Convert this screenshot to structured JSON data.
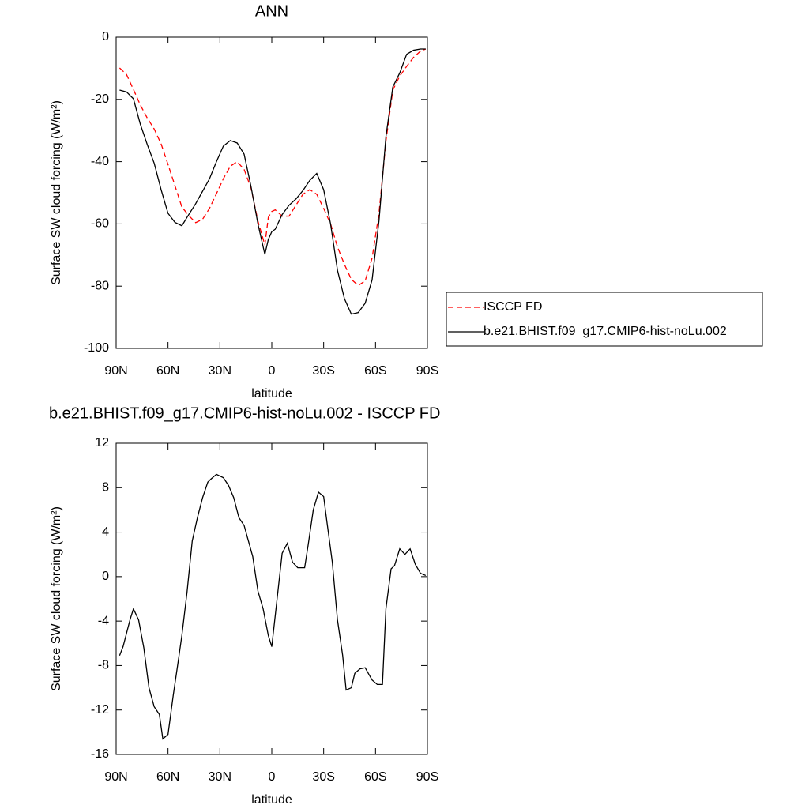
{
  "chart_data": [
    {
      "type": "line",
      "title": "ANN",
      "xlabel": "latitude",
      "ylabel": "Surface SW cloud forcing (W/m²)",
      "xlim": [
        90,
        -90
      ],
      "xticks": [
        {
          "value": 90,
          "label": "90N"
        },
        {
          "value": 60,
          "label": "60N"
        },
        {
          "value": 30,
          "label": "30N"
        },
        {
          "value": 0,
          "label": "0"
        },
        {
          "value": -30,
          "label": "30S"
        },
        {
          "value": -60,
          "label": "60S"
        },
        {
          "value": -90,
          "label": "90S"
        }
      ],
      "ylim": [
        -100,
        0
      ],
      "yticks": [
        -100,
        -80,
        -60,
        -40,
        -20,
        0
      ],
      "legend": "outside-right",
      "x": [
        88,
        84,
        80,
        76,
        72,
        68,
        64,
        60,
        56,
        52,
        48,
        44,
        40,
        36,
        32,
        28,
        24,
        20,
        16,
        12,
        8,
        4,
        2,
        0,
        -2,
        -6,
        -10,
        -14,
        -18,
        -22,
        -26,
        -30,
        -34,
        -38,
        -42,
        -46,
        -50,
        -54,
        -58,
        -62,
        -66,
        -70,
        -74,
        -78,
        -82,
        -86,
        -89
      ],
      "series": [
        {
          "name": "ISCCP FD",
          "color": "#ff0000",
          "style": "dashed",
          "values": [
            -9.9,
            -12,
            -16.8,
            -21.8,
            -26,
            -29.5,
            -34.3,
            -40.9,
            -47.7,
            -54.6,
            -57.3,
            -59.6,
            -58.5,
            -55,
            -50.3,
            -45.5,
            -41.5,
            -40,
            -42.5,
            -48.5,
            -59.1,
            -66.8,
            -57.9,
            -56,
            -55.5,
            -57.5,
            -57.5,
            -54,
            -50.5,
            -49,
            -50.5,
            -55,
            -60,
            -67.4,
            -73,
            -77.8,
            -79.8,
            -78.3,
            -71,
            -56.6,
            -33.5,
            -17,
            -12.5,
            -9.4,
            -6.5,
            -4.5,
            -3.8
          ]
        },
        {
          "name": "b.e21.BHIST.f09_g17.CMIP6-hist-noLu.002",
          "color": "#000000",
          "style": "solid",
          "values": [
            -17,
            -17.6,
            -19.8,
            -28,
            -34.5,
            -40.5,
            -49,
            -56.6,
            -59.5,
            -60.6,
            -57,
            -53.5,
            -49.5,
            -45.5,
            -40,
            -35,
            -33.2,
            -34,
            -37.6,
            -48,
            -60,
            -69.8,
            -65,
            -62.5,
            -61.7,
            -57,
            -54,
            -52,
            -49.3,
            -46,
            -43.8,
            -49,
            -60,
            -74.9,
            -84,
            -89,
            -88.5,
            -85.5,
            -78,
            -59,
            -32,
            -16,
            -11.5,
            -5.5,
            -4.2,
            -3.8,
            -3.8
          ]
        }
      ]
    },
    {
      "type": "line",
      "title": "b.e21.BHIST.f09_g17.CMIP6-hist-noLu.002 - ISCCP FD",
      "xlabel": "latitude",
      "ylabel": "Surface SW cloud forcing (W/m²)",
      "xlim": [
        90,
        -90
      ],
      "xticks": [
        {
          "value": 90,
          "label": "90N"
        },
        {
          "value": 60,
          "label": "60N"
        },
        {
          "value": 30,
          "label": "30N"
        },
        {
          "value": 0,
          "label": "0"
        },
        {
          "value": -30,
          "label": "30S"
        },
        {
          "value": -60,
          "label": "60S"
        },
        {
          "value": -90,
          "label": "90S"
        }
      ],
      "ylim": [
        -16,
        12
      ],
      "yticks": [
        -16,
        -12,
        -8,
        -4,
        0,
        4,
        8,
        12
      ],
      "x": [
        88,
        86,
        82,
        80,
        77,
        74,
        71,
        68,
        65,
        63,
        60,
        57,
        54,
        52,
        49,
        46,
        43,
        40,
        37,
        35,
        32,
        28,
        25,
        22,
        19,
        16,
        11,
        8,
        5,
        2,
        0,
        -3,
        -6,
        -9,
        -12,
        -15,
        -19,
        -21,
        -24,
        -27,
        -30,
        -32,
        -35,
        -38,
        -41,
        -43,
        -46,
        -48,
        -51,
        -54,
        -58,
        -61,
        -64,
        -66,
        -69,
        -71,
        -74,
        -77,
        -80,
        -83,
        -86,
        -89
      ],
      "series": [
        {
          "color": "#000000",
          "style": "solid",
          "values": [
            -7.1,
            -6.3,
            -3.9,
            -2.9,
            -3.9,
            -6.4,
            -10,
            -11.7,
            -12.4,
            -14.6,
            -14.2,
            -10.7,
            -7.5,
            -5.3,
            -1.4,
            3.2,
            5.3,
            7.1,
            8.5,
            8.8,
            9.2,
            8.9,
            8.2,
            7.1,
            5.3,
            4.6,
            1.8,
            -1.3,
            -2.9,
            -5.3,
            -6.3,
            -2.1,
            2.1,
            3.0,
            1.3,
            0.8,
            0.8,
            2.8,
            6.0,
            7.6,
            7.2,
            4.8,
            1.3,
            -3.9,
            -7.1,
            -10.2,
            -10,
            -8.7,
            -8.3,
            -8.2,
            -9.3,
            -9.7,
            -9.7,
            -2.9,
            0.7,
            1.0,
            2.5,
            2.0,
            2.5,
            1.1,
            0.3,
            0.1
          ]
        }
      ]
    }
  ]
}
